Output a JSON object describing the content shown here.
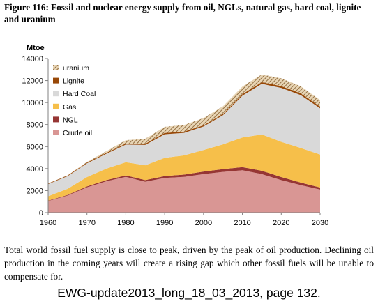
{
  "figure_title": "Figure 116: Fossil and nuclear energy supply from oil, NGLs, natural gas, hard coal, lignite and uranium",
  "caption": "Total world fossil fuel supply is close to peak, driven by the peak of oil production. Declining oil production in the coming years will create a rising gap which other fossil fuels will be unable to compensate for.",
  "source": "EWG-update2013_long_18_03_2013, page 132.",
  "chart_data": {
    "type": "area",
    "stacked": true,
    "ylabel": "Mtoe",
    "x": [
      1960,
      1965,
      1970,
      1975,
      1980,
      1985,
      1990,
      1995,
      2000,
      2005,
      2010,
      2015,
      2020,
      2025,
      2030
    ],
    "ylim": [
      0,
      14000
    ],
    "yticks": [
      0,
      2000,
      4000,
      6000,
      8000,
      10000,
      12000,
      14000
    ],
    "xlim": [
      1960,
      2030
    ],
    "xticks": [
      1960,
      1970,
      1980,
      1990,
      2000,
      2010,
      2020,
      2030
    ],
    "grid": false,
    "legend_position": "top-left",
    "series": [
      {
        "name": "Crude oil",
        "color": "#d99694",
        "values": [
          1050,
          1550,
          2300,
          2850,
          3250,
          2800,
          3150,
          3250,
          3500,
          3700,
          3850,
          3500,
          2950,
          2500,
          2100
        ]
      },
      {
        "name": "NGL",
        "color": "#963634",
        "values": [
          40,
          60,
          80,
          100,
          130,
          150,
          170,
          200,
          230,
          250,
          280,
          300,
          280,
          230,
          180
        ]
      },
      {
        "name": "Gas",
        "color": "#f6bf4a",
        "values": [
          400,
          550,
          850,
          1050,
          1200,
          1350,
          1650,
          1750,
          1950,
          2250,
          2700,
          3300,
          3200,
          3150,
          3000
        ]
      },
      {
        "name": "Hard Coal",
        "color": "#d9d9d9",
        "values": [
          1100,
          1150,
          1250,
          1350,
          1600,
          1850,
          2150,
          2050,
          2150,
          2650,
          3800,
          4600,
          4900,
          4800,
          4200
        ]
      },
      {
        "name": "Lignite",
        "color": "#984807",
        "values": [
          50,
          60,
          70,
          80,
          100,
          110,
          120,
          110,
          110,
          110,
          130,
          150,
          170,
          160,
          150
        ]
      },
      {
        "name": "uranium",
        "color": "#c9a06e",
        "values": [
          10,
          20,
          50,
          150,
          300,
          450,
          550,
          600,
          650,
          700,
          700,
          700,
          700,
          650,
          600
        ]
      }
    ]
  }
}
